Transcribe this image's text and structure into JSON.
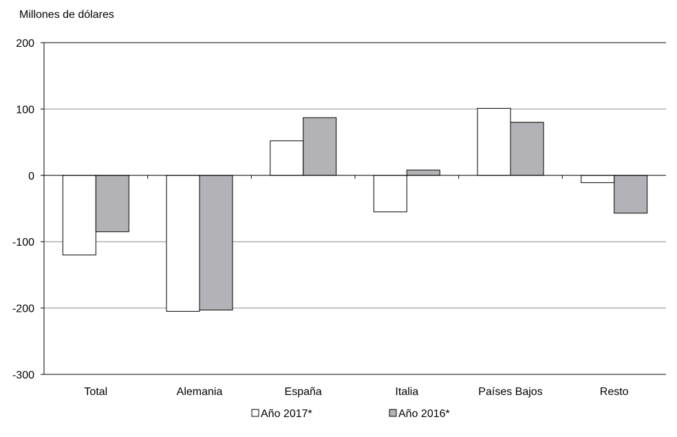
{
  "chart_data": {
    "type": "bar",
    "ylabel": "Millones de dólares",
    "xlabel": "",
    "categories": [
      "Total",
      "Alemania",
      "España",
      "Italia",
      "Países Bajos",
      "Resto"
    ],
    "series": [
      {
        "name": "Año 2017*",
        "color": "#ffffff",
        "values": [
          -120,
          -205,
          52,
          -55,
          101,
          -11
        ]
      },
      {
        "name": "Año 2016*",
        "color": "#b3b3b7",
        "values": [
          -85,
          -203,
          87,
          8,
          80,
          -57
        ]
      }
    ],
    "ylim": [
      -300,
      200
    ],
    "yticks": [
      200,
      100,
      0,
      -100,
      -200,
      -300
    ],
    "ytick_labels": [
      "200",
      "100",
      "0",
      "-100",
      "-200",
      "-300"
    ],
    "grid": true,
    "legend": "bottom-center"
  }
}
